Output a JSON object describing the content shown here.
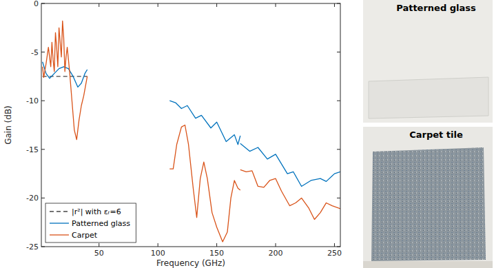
{
  "chart_data": {
    "type": "line",
    "x_label": "Frequency (GHz)",
    "y_label": "Gain (dB)",
    "xlim": [
      1,
      255
    ],
    "ylim": [
      -25,
      0
    ],
    "xticks": [
      50,
      100,
      150,
      200,
      250
    ],
    "yticks": [
      -25,
      -20,
      -15,
      -10,
      -5,
      0
    ],
    "grid": false,
    "legend": "lower left",
    "series": [
      {
        "name": "|r²| with εᵣ=6",
        "color": "#444444",
        "line_style": "dashed",
        "x": [
          2,
          40
        ],
        "values": [
          -7.5,
          -7.5
        ]
      },
      {
        "name": "Patterned glass",
        "color": "#0072bd",
        "line_style": "solid",
        "x": [
          2,
          5,
          8,
          12,
          16,
          20,
          24,
          28,
          32,
          35,
          38,
          40,
          75,
          110,
          115,
          120,
          125,
          132,
          137,
          145,
          150,
          158,
          165,
          168,
          170,
          170,
          170,
          178,
          185,
          193,
          200,
          210,
          215,
          222,
          230,
          238,
          243,
          250,
          255
        ],
        "values": [
          -6.0,
          -7.2,
          -7.7,
          -7.2,
          -6.7,
          -6.5,
          -6.7,
          -7.5,
          -8.6,
          -8.2,
          -7.2,
          -6.8,
          null,
          -10.0,
          -10.2,
          -10.8,
          -10.5,
          -11.8,
          -11.5,
          -12.8,
          -12.2,
          -14.2,
          -13.5,
          -14.5,
          -13.6,
          null,
          -14.4,
          -15.2,
          -14.8,
          -16.0,
          -15.5,
          -17.5,
          -17.3,
          -18.8,
          -18.2,
          -18.0,
          -18.3,
          -17.5,
          -17.3
        ]
      },
      {
        "name": "Carpet",
        "color": "#d95319",
        "line_style": "solid",
        "x": [
          2,
          3,
          5,
          7,
          8,
          9,
          10,
          11,
          12,
          13,
          14,
          15,
          16,
          17,
          18,
          19,
          20,
          21,
          22,
          23,
          25,
          27,
          29,
          31,
          33,
          35,
          37,
          40,
          75,
          110,
          113,
          116,
          120,
          123,
          126,
          130,
          133,
          136,
          139,
          142,
          146,
          150,
          155,
          159,
          162,
          165,
          168,
          170,
          170,
          170,
          175,
          180,
          185,
          190,
          195,
          200,
          205,
          212,
          217,
          222,
          228,
          233,
          238,
          243,
          248,
          255
        ],
        "values": [
          -6.5,
          -7.6,
          -6.2,
          -4.5,
          -5.5,
          -6.5,
          -4.0,
          -5.8,
          -7.0,
          -3.0,
          -4.5,
          -6.5,
          -2.5,
          -4.0,
          -5.5,
          -1.8,
          -3.5,
          -7.0,
          -5.5,
          -4.5,
          -7.0,
          -10.0,
          -13.0,
          -14.0,
          -12.0,
          -10.5,
          -9.5,
          -7.5,
          null,
          -17.0,
          -17.0,
          -14.5,
          -12.7,
          -12.5,
          -14.5,
          -19.0,
          -22.0,
          -18.0,
          -16.3,
          -18.0,
          -21.5,
          -23.0,
          -24.5,
          -23.5,
          -20.0,
          -18.2,
          -19.0,
          -19.2,
          null,
          -17.1,
          -17.3,
          -17.2,
          -18.8,
          -18.9,
          -18.2,
          -18.0,
          -19.3,
          -20.8,
          -20.5,
          -20.0,
          -21.0,
          -22.2,
          -21.5,
          -20.5,
          -20.8,
          -21.1
        ]
      }
    ]
  },
  "photos": [
    {
      "title": "Patterned glass"
    },
    {
      "title": "Carpet tile"
    }
  ]
}
